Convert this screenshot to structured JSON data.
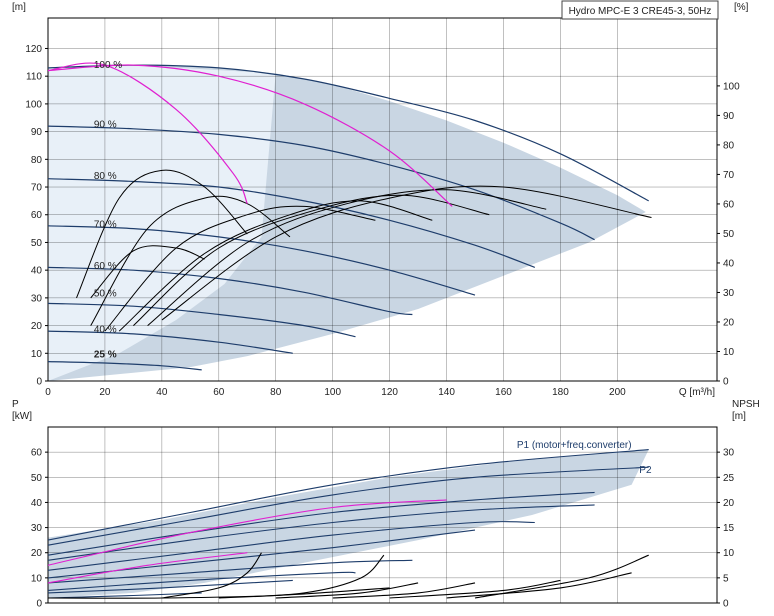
{
  "title": "Hydro MPC-E 3 CRE45-3, 50Hz",
  "colors": {
    "envelope": "#c9d6e3",
    "envelope_light": "#e8f0f8",
    "curve_dark": "#1e3d6b",
    "curve_black": "#000000",
    "efficiency": "#e020d0",
    "grid": "#000000",
    "power_label": "#1e3d6b"
  },
  "chart_data": [
    {
      "type": "line",
      "panel": "head",
      "xlabel": "Q [m³/h]",
      "ylabel_left": "H\n[m]",
      "ylabel_right": "eta\n[%]",
      "xlim": [
        0,
        235
      ],
      "ylim": [
        0,
        131
      ],
      "x_ticks": [
        0,
        20,
        40,
        60,
        80,
        100,
        120,
        140,
        160,
        180,
        200
      ],
      "y_ticks_left": [
        0,
        10,
        20,
        30,
        40,
        50,
        60,
        70,
        80,
        90,
        100,
        110,
        120
      ],
      "y_ticks_right": [
        0,
        10,
        20,
        30,
        40,
        50,
        60,
        70,
        80,
        90,
        100
      ],
      "grid": true,
      "speed_labels": [
        "100 %",
        "90 %",
        "80 %",
        "70 %",
        "60 %",
        "50 %",
        "40 %",
        "25 %"
      ],
      "speed_label_points": [
        [
          14,
          114
        ],
        [
          14,
          92.5
        ],
        [
          14,
          74
        ],
        [
          14,
          56.5
        ],
        [
          14,
          41.5
        ],
        [
          14,
          31.5
        ],
        [
          14,
          18.5
        ],
        [
          14,
          9.5
        ]
      ],
      "envelope": [
        [
          0,
          113
        ],
        [
          20,
          114
        ],
        [
          40,
          114
        ],
        [
          60,
          113
        ],
        [
          80,
          111
        ],
        [
          100,
          107
        ],
        [
          120,
          101
        ],
        [
          140,
          94
        ],
        [
          160,
          86
        ],
        [
          180,
          77
        ],
        [
          200,
          67
        ],
        [
          210,
          61
        ],
        [
          190,
          50
        ],
        [
          160,
          38
        ],
        [
          130,
          26
        ],
        [
          100,
          17
        ],
        [
          70,
          9
        ],
        [
          50,
          5
        ],
        [
          30,
          3
        ],
        [
          0,
          0
        ]
      ],
      "envelope_light": [
        [
          0,
          113
        ],
        [
          30,
          114
        ],
        [
          80,
          111
        ],
        [
          75,
          52
        ],
        [
          62,
          35
        ],
        [
          45,
          22
        ],
        [
          25,
          10
        ],
        [
          0,
          0
        ]
      ],
      "series": [
        {
          "name": "",
          "x": [
            0,
            30,
            60,
            90,
            120,
            150,
            180,
            211
          ],
          "values": [
            113,
            114,
            113,
            109,
            102,
            94,
            82,
            65
          ]
        },
        {
          "name": "",
          "x": [
            0,
            30,
            60,
            90,
            120,
            150,
            180,
            192
          ],
          "values": [
            92,
            91,
            89,
            85,
            78,
            69,
            57,
            51
          ]
        },
        {
          "name": "",
          "x": [
            0,
            30,
            60,
            90,
            120,
            150,
            171
          ],
          "values": [
            73,
            72,
            70,
            65,
            58,
            49,
            41
          ]
        },
        {
          "name": "",
          "x": [
            0,
            30,
            60,
            90,
            120,
            150
          ],
          "values": [
            56,
            55,
            52,
            47,
            40,
            31
          ]
        },
        {
          "name": "",
          "x": [
            0,
            30,
            60,
            90,
            120,
            128
          ],
          "values": [
            41,
            40,
            37,
            32,
            25,
            24
          ]
        },
        {
          "name": "",
          "x": [
            0,
            30,
            60,
            90,
            108
          ],
          "values": [
            28,
            27,
            24,
            20,
            16
          ]
        },
        {
          "name": "",
          "x": [
            0,
            30,
            60,
            86
          ],
          "values": [
            18,
            17,
            14,
            10
          ]
        },
        {
          "name": "",
          "x": [
            0,
            20,
            40,
            54
          ],
          "values": [
            7,
            6.5,
            5.5,
            4
          ]
        }
      ],
      "pump_curves": [
        {
          "x": [
            10,
            25,
            40,
            55,
            70
          ],
          "values": [
            30,
            66,
            76,
            70,
            53
          ]
        },
        {
          "x": [
            15,
            35,
            55,
            70,
            85
          ],
          "values": [
            20,
            55,
            66,
            64,
            52
          ]
        },
        {
          "x": [
            20,
            45,
            70,
            90,
            115
          ],
          "values": [
            18,
            48,
            60,
            63,
            58
          ]
        },
        {
          "x": [
            25,
            55,
            85,
            110,
            135
          ],
          "values": [
            18,
            46,
            60,
            65,
            58
          ]
        },
        {
          "x": [
            30,
            60,
            95,
            125,
            155
          ],
          "values": [
            20,
            48,
            62,
            67,
            60
          ]
        },
        {
          "x": [
            35,
            70,
            105,
            140,
            175
          ],
          "values": [
            20,
            50,
            64,
            69,
            62
          ]
        },
        {
          "x": [
            40,
            80,
            120,
            160,
            212
          ],
          "values": [
            22,
            52,
            66,
            70,
            59
          ]
        },
        {
          "x": [
            15,
            30,
            45,
            55
          ],
          "values": [
            30,
            47,
            48,
            44
          ]
        }
      ],
      "efficiency_curves": [
        {
          "x": [
            0,
            20,
            45,
            65,
            70
          ],
          "values": [
            112,
            114,
            98,
            75,
            64
          ]
        },
        {
          "x": [
            0,
            30,
            60,
            90,
            120,
            142
          ],
          "values": [
            112,
            114,
            110,
            100,
            83,
            63
          ]
        }
      ]
    },
    {
      "type": "line",
      "panel": "power_npsh",
      "ylabel_left": "P\n[kW]",
      "ylabel_right": "NPSH\n[m]",
      "xlim": [
        0,
        235
      ],
      "ylim": [
        0,
        70
      ],
      "y_ticks_left": [
        0,
        10,
        20,
        30,
        40,
        50,
        60
      ],
      "y_ticks_right": [
        0,
        5,
        10,
        15,
        20,
        25,
        30
      ],
      "grid": true,
      "annotations": [
        "P1 (motor+freq.converter)",
        "P2"
      ],
      "annotation_points": [
        [
          160,
          63
        ],
        [
          207,
          53
        ]
      ],
      "envelope": [
        [
          0,
          26
        ],
        [
          40,
          33
        ],
        [
          80,
          42
        ],
        [
          120,
          50
        ],
        [
          160,
          56
        ],
        [
          211,
          61
        ],
        [
          205,
          47
        ],
        [
          170,
          35
        ],
        [
          130,
          25
        ],
        [
          90,
          16
        ],
        [
          55,
          8
        ],
        [
          30,
          4
        ],
        [
          0,
          2
        ]
      ],
      "series": [
        {
          "name": "P1 (motor+freq.converter)",
          "x": [
            0,
            50,
            100,
            150,
            211
          ],
          "values": [
            25,
            36,
            47,
            55,
            61
          ]
        },
        {
          "name": "P2",
          "x": [
            0,
            50,
            100,
            150,
            211
          ],
          "values": [
            23,
            33,
            43,
            50,
            54
          ]
        },
        {
          "name": "",
          "x": [
            0,
            50,
            100,
            150,
            192
          ],
          "values": [
            19,
            28,
            36,
            41,
            44
          ]
        },
        {
          "name": "",
          "x": [
            0,
            50,
            100,
            150,
            192
          ],
          "values": [
            17,
            25,
            32,
            37,
            39
          ]
        },
        {
          "name": "",
          "x": [
            0,
            50,
            100,
            150,
            171
          ],
          "values": [
            13,
            20,
            27,
            32,
            32
          ]
        },
        {
          "name": "",
          "x": [
            0,
            50,
            100,
            150
          ],
          "values": [
            10,
            16,
            22,
            29
          ]
        },
        {
          "name": "",
          "x": [
            0,
            50,
            100,
            128
          ],
          "values": [
            8,
            12,
            16,
            17
          ]
        },
        {
          "name": "",
          "x": [
            0,
            50,
            100,
            108
          ],
          "values": [
            5,
            9,
            12,
            12
          ]
        },
        {
          "name": "",
          "x": [
            0,
            40,
            86
          ],
          "values": [
            4,
            6,
            9
          ]
        },
        {
          "name": "",
          "x": [
            0,
            30,
            54
          ],
          "values": [
            2,
            3,
            4
          ]
        }
      ],
      "efficiency_curves": [
        {
          "x": [
            0,
            50,
            100,
            140
          ],
          "values": [
            15,
            28,
            38,
            41
          ]
        },
        {
          "x": [
            0,
            35,
            70
          ],
          "values": [
            8,
            15,
            20
          ]
        }
      ],
      "npsh_curves": [
        {
          "x": [
            40,
            60,
            70,
            75
          ],
          "values": [
            1,
            3,
            6,
            10
          ]
        },
        {
          "x": [
            60,
            90,
            110,
            118
          ],
          "values": [
            1,
            2,
            5,
            9.5
          ]
        },
        {
          "x": [
            80,
            110,
            130
          ],
          "values": [
            1,
            2,
            4
          ]
        },
        {
          "x": [
            100,
            130,
            150
          ],
          "values": [
            1,
            2,
            4
          ]
        },
        {
          "x": [
            120,
            160,
            180
          ],
          "values": [
            1,
            2.5,
            4.5
          ]
        },
        {
          "x": [
            140,
            180,
            205
          ],
          "values": [
            1,
            3,
            6
          ]
        },
        {
          "x": [
            150,
            190,
            211
          ],
          "values": [
            1,
            5,
            9.5
          ]
        },
        {
          "x": [
            0,
            40,
            80,
            120
          ],
          "values": [
            1,
            1,
            1.5,
            3
          ]
        }
      ]
    }
  ]
}
